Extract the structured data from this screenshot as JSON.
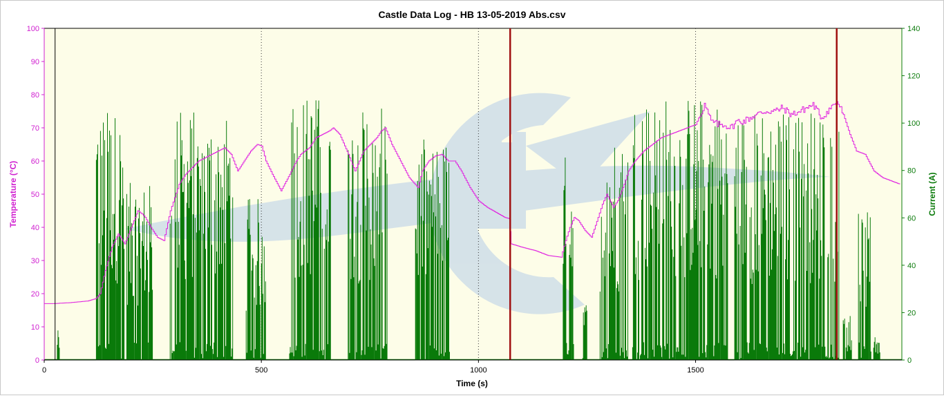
{
  "chart_data": {
    "type": "line",
    "title": "Castle Data Log - HB 13-05-2019 Abs.csv",
    "xlabel": "Time (s)",
    "ylabel_left": "Temperature (°C)",
    "ylabel_right": "Current (A)",
    "xlim": [
      0,
      1975
    ],
    "ylim_left": [
      0,
      100
    ],
    "ylim_right": [
      0,
      140
    ],
    "x_ticks": [
      0,
      500,
      1000,
      1500
    ],
    "y_ticks_left": [
      0,
      10,
      20,
      30,
      40,
      50,
      60,
      70,
      80,
      90,
      100
    ],
    "y_ticks_right": [
      0,
      20,
      40,
      60,
      80,
      100,
      120,
      140
    ],
    "grid": "vertical dotted at x ticks",
    "markers": [
      25,
      1073,
      1825
    ],
    "colors": {
      "temperature": "#e020e0",
      "current": "#0a7a0a",
      "marker": "#a01010",
      "left_axis": "#d020d0",
      "right_axis": "#0a7a0a",
      "plot_bg": "#fdfde8"
    },
    "series": [
      {
        "axis": "left",
        "x": [
          0,
          20,
          60,
          100,
          118,
          128,
          140,
          155,
          170,
          185,
          200,
          215,
          225,
          232,
          245,
          260,
          275,
          290,
          300,
          310,
          325,
          340,
          355,
          370,
          385,
          400,
          415,
          430,
          445,
          460,
          475,
          490,
          500,
          510,
          525,
          545,
          565,
          580,
          590,
          610,
          625,
          640,
          655,
          665,
          680,
          700,
          715,
          725,
          735,
          750,
          765,
          775,
          785,
          800,
          820,
          840,
          860,
          870,
          885,
          900,
          915,
          930,
          945,
          960,
          980,
          1000,
          1020,
          1040,
          1060,
          1073,
          1075,
          1100,
          1130,
          1160,
          1190,
          1200,
          1210,
          1220,
          1230,
          1245,
          1260,
          1275,
          1285,
          1295,
          1310,
          1320,
          1335,
          1345,
          1360,
          1380,
          1400,
          1420,
          1440,
          1460,
          1480,
          1500,
          1510,
          1520,
          1535,
          1550,
          1565,
          1580,
          1595,
          1610,
          1625,
          1640,
          1660,
          1680,
          1700,
          1720,
          1740,
          1755,
          1770,
          1790,
          1810,
          1825,
          1840,
          1855,
          1870,
          1890,
          1910,
          1930,
          1950,
          1970
        ],
        "y": [
          17,
          17,
          17.3,
          17.8,
          18.5,
          20,
          27,
          34,
          38,
          35,
          40,
          45,
          44,
          43,
          40,
          37,
          36,
          45,
          49,
          53,
          56,
          58,
          60,
          61,
          62,
          63,
          64,
          62,
          57,
          60,
          63,
          65,
          64.5,
          60,
          56,
          51,
          56,
          60,
          62,
          64,
          67,
          68,
          69,
          70,
          68,
          62,
          57,
          60,
          63,
          65,
          67,
          69,
          70,
          65,
          60,
          55,
          52,
          57,
          60,
          61.5,
          62,
          60,
          60,
          57,
          52,
          48,
          46,
          44.5,
          43,
          42.5,
          35,
          34,
          33,
          31.5,
          31,
          36,
          40,
          43,
          42,
          39,
          37,
          43,
          47,
          50,
          46,
          48,
          53,
          57,
          60,
          63,
          65,
          67,
          68,
          69,
          70,
          71,
          74,
          77,
          72,
          71,
          71,
          70,
          72,
          72,
          73,
          74,
          75,
          75,
          76,
          74,
          75,
          76,
          77,
          73,
          76,
          78,
          74,
          68,
          63,
          62,
          57,
          55,
          54,
          53
        ]
      },
      {
        "axis": "right",
        "pattern": "dense spikes",
        "bursts": [
          [
            30,
            35,
            0.1
          ],
          [
            120,
            185,
            0.85
          ],
          [
            190,
            250,
            0.6
          ],
          [
            290,
            435,
            0.85
          ],
          [
            465,
            510,
            0.55
          ],
          [
            565,
            660,
            0.9
          ],
          [
            700,
            790,
            0.85
          ],
          [
            855,
            935,
            0.75
          ],
          [
            1195,
            1220,
            0.7
          ],
          [
            1240,
            1250,
            0.2
          ],
          [
            1280,
            1345,
            0.75
          ],
          [
            1355,
            1505,
            0.9
          ],
          [
            1505,
            1575,
            0.9
          ],
          [
            1590,
            1830,
            0.85
          ],
          [
            1840,
            1860,
            0.2
          ],
          [
            1875,
            1905,
            0.5
          ],
          [
            1910,
            1925,
            0.1
          ]
        ]
      }
    ]
  }
}
